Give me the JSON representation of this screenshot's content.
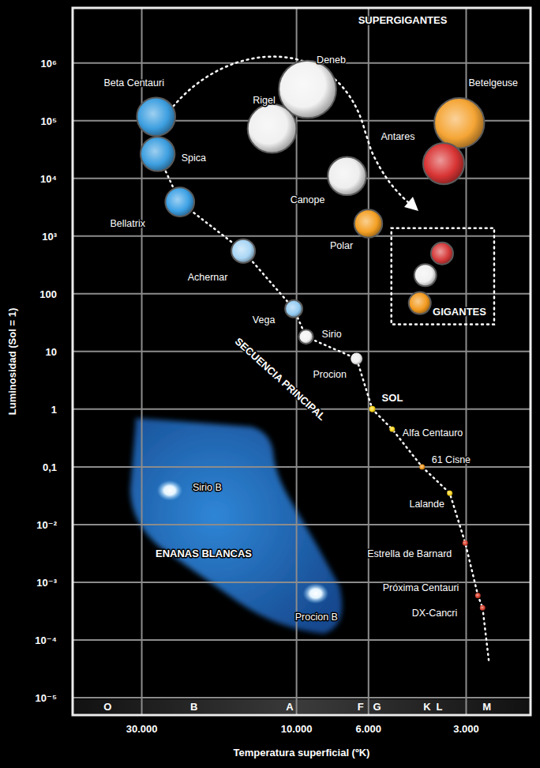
{
  "chart_data": {
    "type": "scatter",
    "x_label": "Temperatura superficial (ºK)",
    "y_label": "Luminosidad (Sol = 1)",
    "log": true,
    "grid": true,
    "xlim": [
      49000,
      1900
    ],
    "ylim": [
      5e-06,
      9000000
    ],
    "xticks": [
      {
        "value": 30000,
        "label": "30.000"
      },
      {
        "value": 10000,
        "label": "10.000"
      },
      {
        "value": 6000,
        "label": "6.000"
      },
      {
        "value": 3000,
        "label": "3.000"
      }
    ],
    "yticks": [
      {
        "value": 1000000,
        "label": "10⁶"
      },
      {
        "value": 100000,
        "label": "10⁵"
      },
      {
        "value": 10000,
        "label": "10⁴"
      },
      {
        "value": 1000,
        "label": "10³"
      },
      100,
      10,
      1,
      {
        "value": 0.1,
        "label": "0,1"
      },
      {
        "value": 0.01,
        "label": "10⁻²"
      },
      {
        "value": 0.001,
        "label": "10⁻³"
      },
      {
        "value": 0.0001,
        "label": "10⁻⁴"
      },
      {
        "value": 1e-05,
        "label": "10⁻⁵"
      }
    ],
    "spectral_classes": {
      "labels": [
        "O",
        "B",
        "A",
        "F",
        "G",
        "K",
        "L",
        "M"
      ],
      "x": [
        38200,
        20700,
        10500,
        6350,
        5650,
        3960,
        3630,
        2590
      ]
    },
    "series": [
      {
        "name": "SUPERGIGANTES",
        "labels": [
          "Deneb",
          "Rigel",
          "Canope",
          "Polar",
          "Betelgeuse",
          "Antares"
        ],
        "x": [
          9250,
          11900,
          6990,
          6010,
          3150,
          3520
        ],
        "values": [
          350000,
          73000,
          11000,
          1650,
          91000,
          18000
        ],
        "colors": [
          "#f2f2f2",
          "#f0f0f0",
          "#eeeeee",
          "#f4a024",
          "#f5a535",
          "#d93434"
        ]
      },
      {
        "name": "GIGANTES",
        "labels": [
          null,
          null,
          null
        ],
        "x": [
          3560,
          4010,
          4170
        ],
        "values": [
          500,
          210,
          69
        ],
        "colors": [
          "#d63b3b",
          "#f0f0f0",
          "#f29a1f"
        ]
      },
      {
        "name": "SECUENCIA PRINCIPAL",
        "line_style": "dotted",
        "labels": [
          "Beta Centauri",
          "Spica",
          "Bellatrix",
          "Achernar",
          "Vega",
          "Sirio",
          "Procion",
          "SOL",
          "Alfa Centauro",
          "61 Cisne",
          "Lalande",
          "Estrella de Barnard",
          "Próxima Centauri",
          "DX-Cancri"
        ],
        "x": [
          27100,
          26800,
          22900,
          14600,
          10200,
          9350,
          6530,
          5840,
          5070,
          4100,
          3370,
          3020,
          2760,
          2670
        ],
        "values": [
          117000,
          26500,
          3900,
          550,
          55,
          18,
          7.5,
          1,
          0.45,
          0.1,
          0.035,
          0.0048,
          0.00059,
          0.00036
        ],
        "colors": [
          "#3d9fe0",
          "#3d9fe0",
          "#3ea2e6",
          "#a9d6f5",
          "#94ccf2",
          "#f2f2f2",
          "#f0f0f0",
          "#f7d21a",
          "#f7d21a",
          "#f29a1f",
          "#f7d21a",
          "#d9412e",
          "#d9412e",
          "#d9412e"
        ]
      },
      {
        "name": "ENANAS BLANCAS",
        "marker": "glow",
        "labels": [
          "Sirio B",
          "Procion B"
        ],
        "x": [
          24600,
          8730
        ],
        "values": [
          0.039,
          0.00064
        ],
        "colors": [
          "#e4f4ff",
          "#e4f4ff"
        ]
      }
    ]
  }
}
